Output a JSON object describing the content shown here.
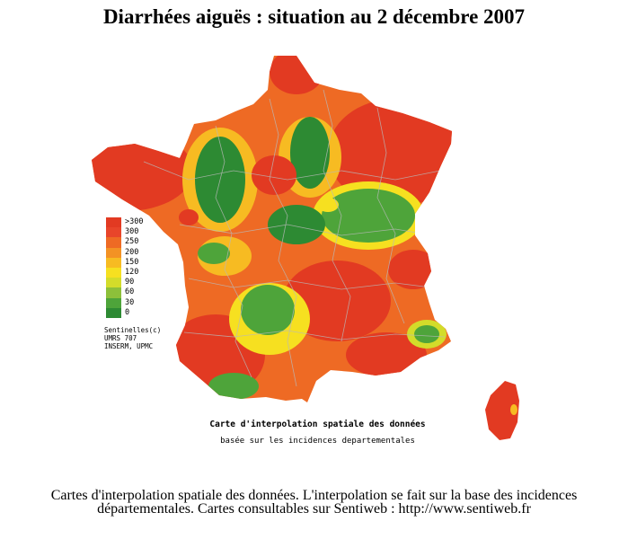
{
  "title": "Diarrhées aiguës : situation au 2 décembre 2007",
  "legend": {
    "items": [
      {
        "label": ">300",
        "color": "#e23a22"
      },
      {
        "label": "300",
        "color": "#e8452a"
      },
      {
        "label": "250",
        "color": "#ee6a24"
      },
      {
        "label": "200",
        "color": "#f39224"
      },
      {
        "label": "150",
        "color": "#f7bb22"
      },
      {
        "label": "120",
        "color": "#f6e020"
      },
      {
        "label": "90",
        "color": "#d3dc2a"
      },
      {
        "label": "60",
        "color": "#8dc03a"
      },
      {
        "label": "30",
        "color": "#4ea43a"
      },
      {
        "label": "0",
        "color": "#2d8a33"
      }
    ]
  },
  "credits": {
    "line1": "Sentinelles(c)",
    "line2": "UMRS 707",
    "line3": "INSERM, UPMC"
  },
  "map_caption": {
    "main": "Carte d'interpolation spatiale des données",
    "sub": "basée sur les incidences departementales"
  },
  "footer": {
    "line1": "Cartes d'interpolation spatiale des données. L'interpolation se fait sur la base des incidences",
    "line2": "départementales. Cartes consultables sur Sentiweb : http://www.sentiweb.fr"
  },
  "colors": {
    "high": "#e23a22",
    "mid": "#f39224",
    "low": "#2d8a33",
    "border": "#b9b9b9"
  }
}
